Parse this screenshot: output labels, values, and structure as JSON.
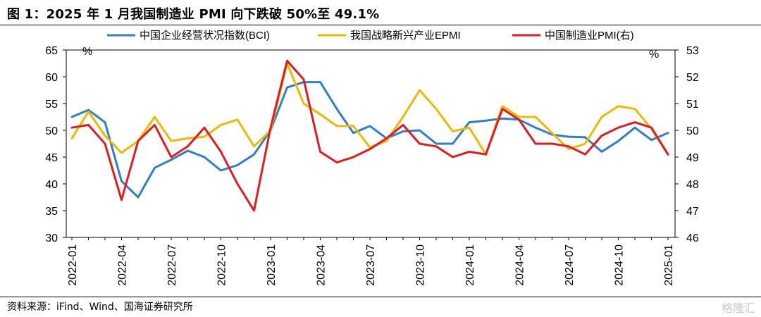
{
  "header": {
    "title": "图 1：2025 年 1 月我国制造业 PMI 向下跌破 50%至 49.1%"
  },
  "footer": {
    "source": "资料来源：iFind、Wind、国海证券研究所",
    "watermark": "格隆汇"
  },
  "chart_data": {
    "type": "line",
    "title": "",
    "xlabel": "",
    "y_left_label": "%",
    "y_right_label": "%",
    "y_left_lim": [
      30,
      65
    ],
    "y_left_ticks": [
      30,
      35,
      40,
      45,
      50,
      55,
      60,
      65
    ],
    "y_right_lim": [
      46,
      53
    ],
    "y_right_ticks": [
      46,
      47,
      48,
      49,
      50,
      51,
      52,
      53
    ],
    "x_tick_labels": [
      "2022-01",
      "2022-04",
      "2022-07",
      "2022-10",
      "2023-01",
      "2023-04",
      "2023-07",
      "2023-10",
      "2024-01",
      "2024-04",
      "2024-07",
      "2024-10",
      "2025-01"
    ],
    "x": [
      "2022-01",
      "2022-02",
      "2022-03",
      "2022-04",
      "2022-05",
      "2022-06",
      "2022-07",
      "2022-08",
      "2022-09",
      "2022-10",
      "2022-11",
      "2022-12",
      "2023-01",
      "2023-02",
      "2023-03",
      "2023-04",
      "2023-05",
      "2023-06",
      "2023-07",
      "2023-08",
      "2023-09",
      "2023-10",
      "2023-11",
      "2023-12",
      "2024-01",
      "2024-02",
      "2024-03",
      "2024-04",
      "2024-05",
      "2024-06",
      "2024-07",
      "2024-08",
      "2024-09",
      "2024-10",
      "2024-11",
      "2024-12",
      "2025-01"
    ],
    "grid": false,
    "legend_position": "top",
    "series": [
      {
        "name": "中国企业经营状况指数(BCI)",
        "axis": "left",
        "color": "#2f7fc8",
        "values": [
          52.5,
          53.8,
          51.5,
          40.5,
          37.5,
          43.0,
          44.5,
          46.2,
          45.0,
          42.5,
          43.5,
          45.5,
          50.0,
          58.0,
          59.0,
          59.0,
          54.0,
          49.5,
          50.8,
          48.5,
          49.8,
          50.0,
          47.5,
          47.5,
          51.5,
          51.8,
          52.2,
          52.0,
          50.5,
          49.2,
          48.8,
          48.7,
          46.0,
          48.0,
          50.5,
          48.2,
          49.5
        ]
      },
      {
        "name": "我国战略新兴产业EPMI",
        "axis": "left",
        "color": "#f0b800",
        "values": [
          48.5,
          53.5,
          49.0,
          45.8,
          48.0,
          52.5,
          48.0,
          48.5,
          48.8,
          51.0,
          52.0,
          47.0,
          50.0,
          62.5,
          55.0,
          53.0,
          50.8,
          50.8,
          46.8,
          48.0,
          52.5,
          57.5,
          54.0,
          49.8,
          50.5,
          45.5,
          54.5,
          52.5,
          52.5,
          49.5,
          46.5,
          47.5,
          52.5,
          54.5,
          54.0,
          50.3,
          45.5
        ]
      },
      {
        "name": "中国制造业PMI(右)",
        "axis": "right",
        "color": "#e01c1c",
        "values": [
          50.1,
          50.2,
          49.5,
          47.4,
          49.6,
          50.2,
          49.0,
          49.4,
          50.1,
          49.2,
          48.0,
          47.0,
          50.1,
          52.6,
          51.9,
          49.2,
          48.8,
          49.0,
          49.3,
          49.7,
          50.2,
          49.5,
          49.4,
          49.0,
          49.2,
          49.1,
          50.8,
          50.4,
          49.5,
          49.5,
          49.4,
          49.1,
          49.8,
          50.1,
          50.3,
          50.1,
          49.1
        ]
      }
    ]
  }
}
